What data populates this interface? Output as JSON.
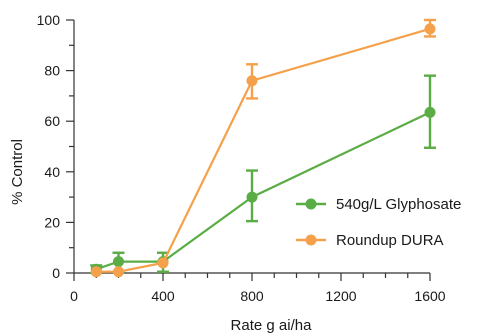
{
  "chart_data": {
    "type": "line",
    "title": "",
    "xlabel": "Rate g ai/ha",
    "ylabel": "% Control",
    "xlim": [
      0,
      1600
    ],
    "ylim": [
      0,
      100
    ],
    "x_ticks": [
      0,
      400,
      800,
      1200,
      1600
    ],
    "y_ticks": [
      0,
      20,
      40,
      60,
      80,
      100
    ],
    "x_tick_labels": [
      "0",
      "400",
      "800",
      "1200",
      "1600"
    ],
    "y_tick_labels": [
      "0",
      "20",
      "40",
      "60",
      "80",
      "100"
    ],
    "x_minor_ticks": [
      100,
      200,
      300,
      500,
      600,
      700,
      900,
      1000,
      1100,
      1300,
      1400,
      1500
    ],
    "y_minor_ticks": [
      10,
      30,
      50,
      70,
      90
    ],
    "grid": false,
    "legend_position": "right",
    "series": [
      {
        "name": "540g/L Glyphosate",
        "color": "#5aac44",
        "x": [
          100,
          200,
          400,
          800,
          1600
        ],
        "y": [
          1.5,
          4.5,
          4.5,
          30,
          63.5
        ],
        "err_low": [
          1.5,
          4,
          4,
          9.5,
          14
        ],
        "err_high": [
          1.5,
          3.5,
          3.5,
          10.5,
          14.5
        ]
      },
      {
        "name": "Roundup DURA",
        "color": "#f5a04a",
        "x": [
          100,
          200,
          400,
          800,
          1600
        ],
        "y": [
          0.5,
          0.5,
          4,
          76,
          96.5
        ],
        "err_low": [
          0.5,
          0.5,
          0.5,
          7,
          3
        ],
        "err_high": [
          0.5,
          0.5,
          0.5,
          6.5,
          3.5
        ]
      }
    ]
  }
}
